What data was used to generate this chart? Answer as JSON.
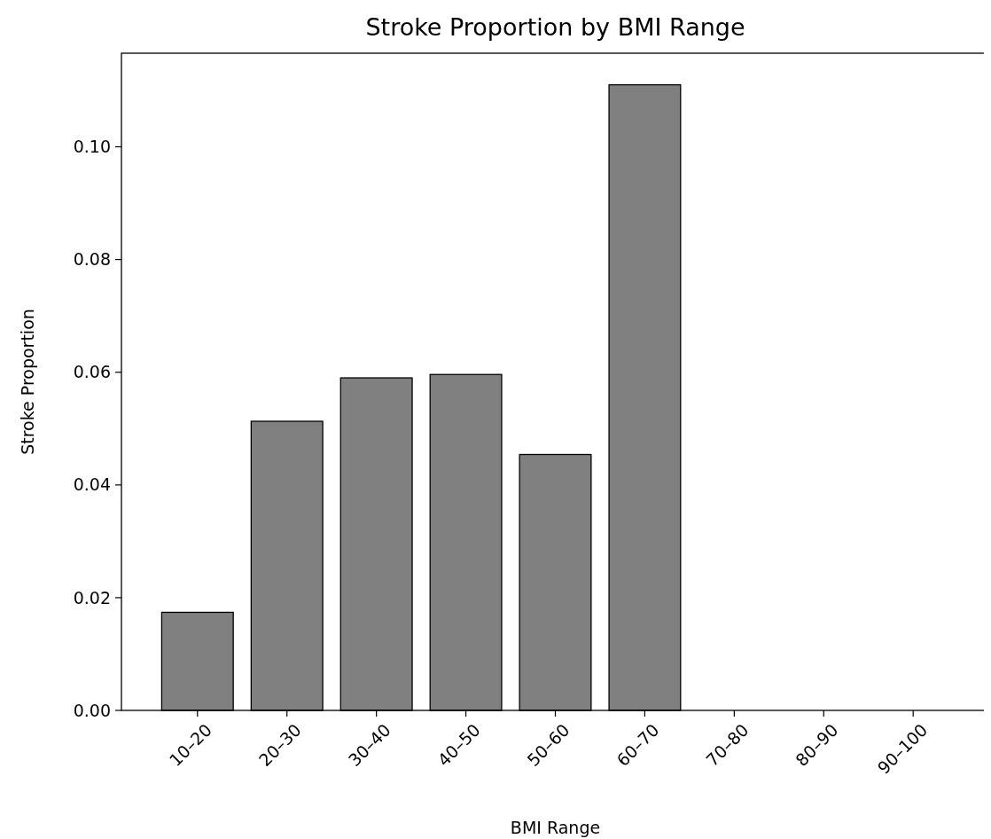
{
  "chart_data": {
    "type": "bar",
    "title": "Stroke Proportion by BMI Range",
    "xlabel": "BMI Range",
    "ylabel": "Stroke Proportion",
    "categories": [
      "10–20",
      "20–30",
      "30–40",
      "40–50",
      "50–60",
      "60–70",
      "70–80",
      "80–90",
      "90–100"
    ],
    "values": [
      0.0174,
      0.0513,
      0.059,
      0.0596,
      0.0454,
      0.111,
      0,
      0,
      0
    ],
    "color": "#808080",
    "ylim": [
      0,
      0.1166
    ],
    "yticks": [
      {
        "value": 0,
        "label": "0.00"
      },
      {
        "value": 0.02,
        "label": "0.02"
      },
      {
        "value": 0.04,
        "label": "0.04"
      },
      {
        "value": 0.06,
        "label": "0.06"
      },
      {
        "value": 0.08,
        "label": "0.08"
      },
      {
        "value": 0.1,
        "label": "0.10"
      }
    ],
    "grid": false
  }
}
